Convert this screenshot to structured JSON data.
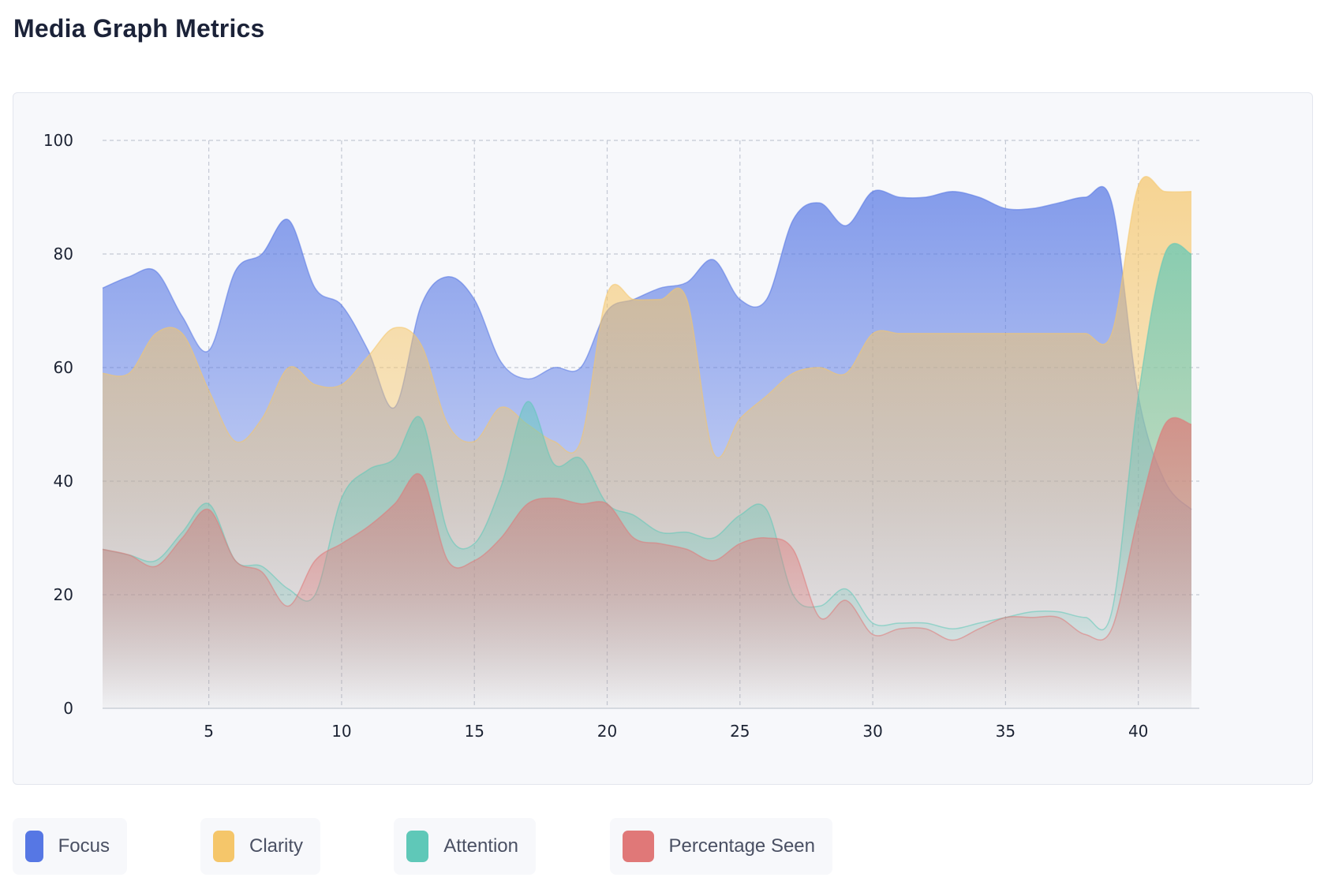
{
  "title": "Media Graph Metrics",
  "chart_data": {
    "type": "area",
    "title": "Media Graph Metrics",
    "xlabel": "",
    "ylabel": "",
    "xlim": [
      1,
      42
    ],
    "ylim": [
      0,
      100
    ],
    "x_ticks": [
      5,
      10,
      15,
      20,
      25,
      30,
      35,
      40
    ],
    "y_ticks": [
      0,
      20,
      40,
      60,
      80,
      100
    ],
    "grid": true,
    "legend_position": "bottom",
    "x": [
      1,
      2,
      3,
      4,
      5,
      6,
      7,
      8,
      9,
      10,
      11,
      12,
      13,
      14,
      15,
      16,
      17,
      18,
      19,
      20,
      21,
      22,
      23,
      24,
      25,
      26,
      27,
      28,
      29,
      30,
      31,
      32,
      33,
      34,
      35,
      36,
      37,
      38,
      39,
      40,
      41,
      42
    ],
    "series": [
      {
        "name": "Focus",
        "color": "#5677e4",
        "values": [
          74,
          76,
          77,
          69,
          63,
          77,
          80,
          86,
          74,
          71,
          63,
          53,
          71,
          76,
          72,
          61,
          58,
          60,
          60,
          70,
          72,
          74,
          75,
          79,
          72,
          72,
          86,
          89,
          85,
          91,
          90,
          90,
          91,
          90,
          88,
          88,
          89,
          90,
          89,
          55,
          40,
          35
        ]
      },
      {
        "name": "Clarity",
        "color": "#f5c66a",
        "values": [
          59,
          59,
          66,
          66,
          56,
          47,
          51,
          60,
          57,
          57,
          62,
          67,
          64,
          50,
          47,
          53,
          50,
          47,
          47,
          73,
          72,
          72,
          72,
          45,
          51,
          55,
          59,
          60,
          59,
          66,
          66,
          66,
          66,
          66,
          66,
          66,
          66,
          66,
          66,
          92,
          91,
          91
        ]
      },
      {
        "name": "Attention",
        "color": "#5fc8b8",
        "values": [
          28,
          27,
          26,
          31,
          36,
          26,
          25,
          21,
          20,
          37,
          42,
          44,
          51,
          31,
          29,
          39,
          54,
          43,
          44,
          36,
          34,
          31,
          31,
          30,
          34,
          35,
          20,
          18,
          21,
          15,
          15,
          15,
          14,
          15,
          16,
          17,
          17,
          16,
          17,
          55,
          80,
          80
        ]
      },
      {
        "name": "Percentage Seen",
        "color": "#e07878",
        "values": [
          28,
          27,
          25,
          30,
          35,
          26,
          24,
          18,
          26,
          29,
          32,
          36,
          41,
          26,
          26,
          30,
          36,
          37,
          36,
          36,
          30,
          29,
          28,
          26,
          29,
          30,
          28,
          16,
          19,
          13,
          14,
          14,
          12,
          14,
          16,
          16,
          16,
          13,
          14,
          34,
          50,
          50
        ]
      }
    ]
  }
}
